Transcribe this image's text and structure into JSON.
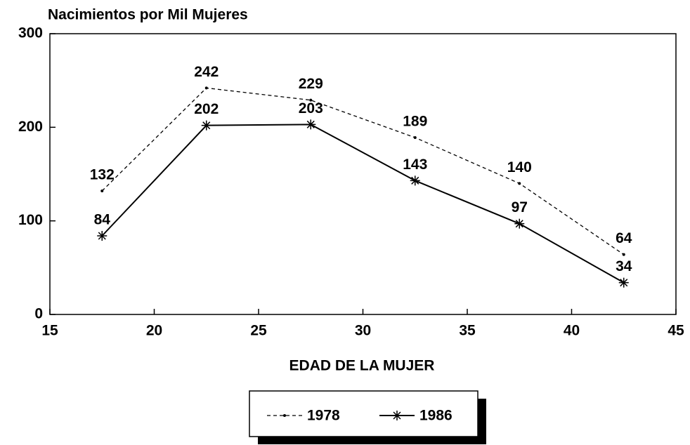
{
  "chart_data": {
    "type": "line",
    "y_label": "Nacimientos por Mil Mujeres",
    "x_label": "EDAD DE LA MUJER",
    "x": [
      17.5,
      22.5,
      27.5,
      32.5,
      37.5,
      42.5
    ],
    "series": [
      {
        "name": "1978",
        "color": "#000000",
        "values": [
          132,
          242,
          229,
          189,
          140,
          64
        ]
      },
      {
        "name": "1986",
        "color": "#000000",
        "values": [
          84,
          202,
          203,
          143,
          97,
          34
        ]
      }
    ],
    "xlim": [
      15,
      45
    ],
    "xticks": [
      15,
      20,
      25,
      30,
      35,
      40,
      45
    ],
    "ylim": [
      0,
      300
    ],
    "yticks": [
      0,
      100,
      200,
      300
    ],
    "legend": "bottom"
  }
}
